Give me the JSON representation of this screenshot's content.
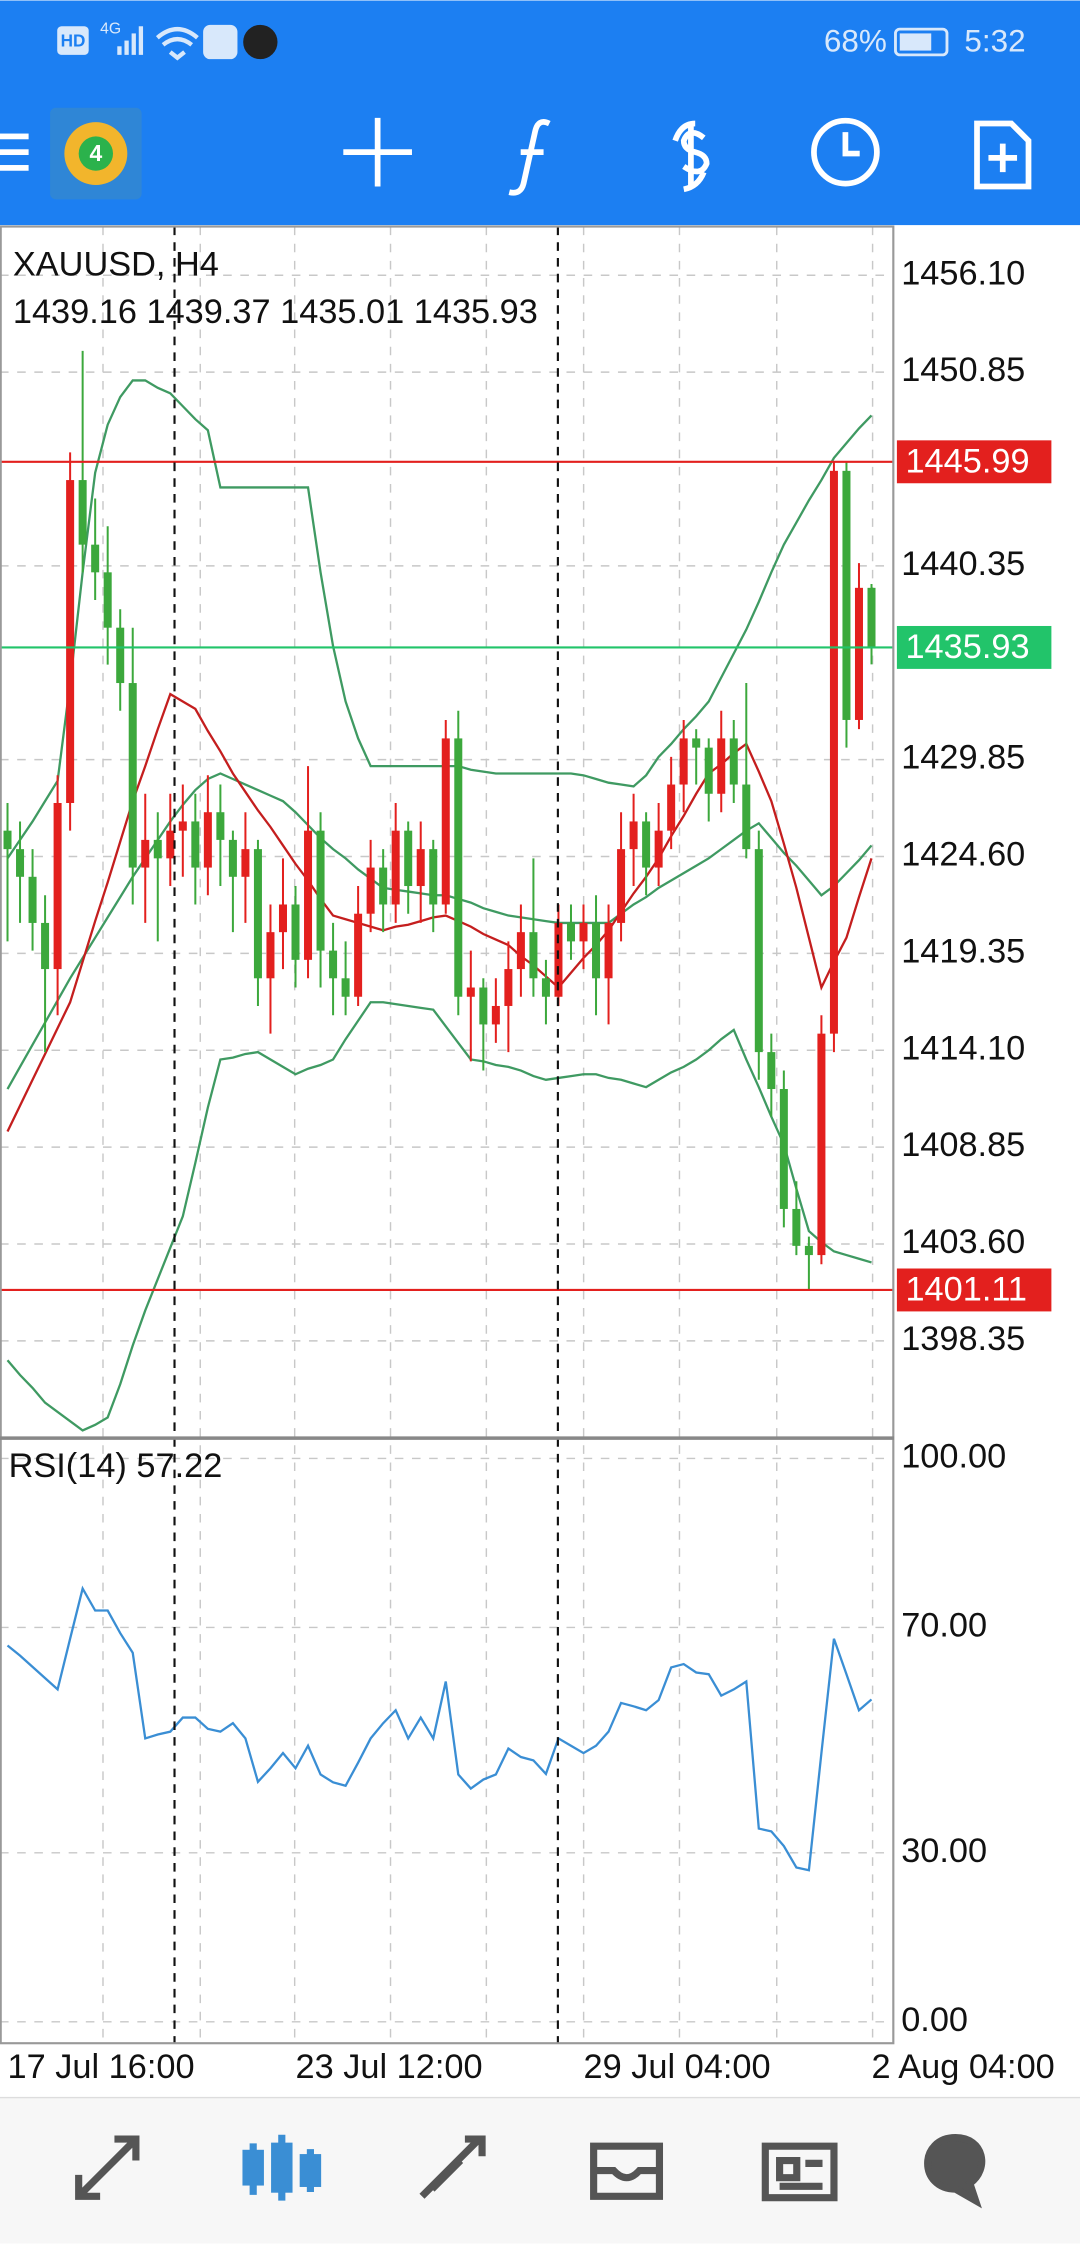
{
  "status_bar": {
    "left": [
      "HD",
      "4G"
    ],
    "battery": "68%",
    "time": "5:32"
  },
  "chart_data": [
    {
      "type": "candlestick",
      "title": "XAUUSD, H4",
      "up_color": "#e3201e",
      "down_color": "#3ca83c",
      "grid": true,
      "xlim": [
        -0.6,
        70.8
      ],
      "xticks": [
        {
          "value": 0,
          "label": "17 Jul 16:00"
        },
        {
          "value": 23,
          "label": "23 Jul 12:00"
        },
        {
          "value": 46,
          "label": "29 Jul 04:00"
        },
        {
          "value": 69,
          "label": "2 Aug 04:00"
        }
      ],
      "ylim": [
        1393.08,
        1458.74
      ],
      "yticks": [
        {
          "value": 1456.1,
          "label": "1456.10"
        },
        {
          "value": 1450.85,
          "label": "1450.85"
        },
        {
          "value": 1440.35,
          "label": "1440.35"
        },
        {
          "value": 1429.85,
          "label": "1429.85"
        },
        {
          "value": 1424.6,
          "label": "1424.60"
        },
        {
          "value": 1419.35,
          "label": "1419.35"
        },
        {
          "value": 1414.1,
          "label": "1414.10"
        },
        {
          "value": 1408.85,
          "label": "1408.85"
        },
        {
          "value": 1403.6,
          "label": "1403.60"
        },
        {
          "value": 1398.35,
          "label": "1398.35"
        }
      ],
      "ohlc": [
        [
          1426.0,
          1427.5,
          1420.0,
          1425.0
        ],
        [
          1425.0,
          1426.5,
          1421.0,
          1423.5
        ],
        [
          1423.5,
          1425.0,
          1419.5,
          1421.0
        ],
        [
          1421.0,
          1422.5,
          1414.0,
          1418.5
        ],
        [
          1418.5,
          1429.0,
          1416.0,
          1427.5
        ],
        [
          1427.5,
          1446.5,
          1426.0,
          1445.0
        ],
        [
          1445.0,
          1452.0,
          1440.0,
          1441.5
        ],
        [
          1441.5,
          1444.0,
          1438.5,
          1440.0
        ],
        [
          1440.0,
          1442.5,
          1435.0,
          1437.0
        ],
        [
          1437.0,
          1438.0,
          1432.5,
          1434.0
        ],
        [
          1434.0,
          1437.0,
          1422.0,
          1424.0
        ],
        [
          1424.0,
          1428.0,
          1421.0,
          1425.5
        ],
        [
          1425.5,
          1427.0,
          1420.0,
          1424.5
        ],
        [
          1424.5,
          1428.0,
          1423.0,
          1426.0
        ],
        [
          1426.0,
          1428.5,
          1423.5,
          1426.5
        ],
        [
          1426.5,
          1428.0,
          1422.0,
          1424.0
        ],
        [
          1424.0,
          1429.0,
          1422.5,
          1427.0
        ],
        [
          1427.0,
          1428.5,
          1423.0,
          1425.5
        ],
        [
          1425.5,
          1426.0,
          1420.5,
          1423.5
        ],
        [
          1423.5,
          1427.0,
          1421.0,
          1425.0
        ],
        [
          1425.0,
          1425.5,
          1416.5,
          1418.0
        ],
        [
          1418.0,
          1422.0,
          1415.0,
          1420.5
        ],
        [
          1420.5,
          1424.5,
          1418.5,
          1422.0
        ],
        [
          1422.0,
          1423.0,
          1417.5,
          1419.0
        ],
        [
          1419.0,
          1429.5,
          1418.0,
          1426.0
        ],
        [
          1426.0,
          1427.0,
          1417.5,
          1419.5
        ],
        [
          1419.5,
          1421.0,
          1416.0,
          1418.0
        ],
        [
          1418.0,
          1420.0,
          1416.0,
          1417.0
        ],
        [
          1417.0,
          1423.0,
          1416.5,
          1421.5
        ],
        [
          1421.5,
          1425.5,
          1420.5,
          1424.0
        ],
        [
          1424.0,
          1425.0,
          1420.5,
          1422.0
        ],
        [
          1422.0,
          1427.5,
          1421.0,
          1426.0
        ],
        [
          1426.0,
          1426.5,
          1421.5,
          1423.0
        ],
        [
          1423.0,
          1426.5,
          1421.0,
          1425.0
        ],
        [
          1425.0,
          1425.5,
          1420.5,
          1422.0
        ],
        [
          1422.0,
          1432.0,
          1421.5,
          1431.0
        ],
        [
          1431.0,
          1432.5,
          1416.0,
          1417.0
        ],
        [
          1417.0,
          1419.5,
          1413.5,
          1417.5
        ],
        [
          1417.5,
          1418.0,
          1413.0,
          1415.5
        ],
        [
          1415.5,
          1418.0,
          1414.5,
          1416.5
        ],
        [
          1416.5,
          1420.0,
          1414.0,
          1418.5
        ],
        [
          1418.5,
          1422.0,
          1417.0,
          1420.5
        ],
        [
          1420.5,
          1424.5,
          1417.0,
          1418.0
        ],
        [
          1418.0,
          1419.0,
          1415.5,
          1417.0
        ],
        [
          1417.0,
          1422.0,
          1416.5,
          1421.0
        ],
        [
          1421.0,
          1422.0,
          1419.0,
          1420.0
        ],
        [
          1420.0,
          1422.0,
          1418.5,
          1421.0
        ],
        [
          1421.0,
          1422.5,
          1416.0,
          1418.0
        ],
        [
          1418.0,
          1422.0,
          1415.5,
          1421.0
        ],
        [
          1421.0,
          1427.0,
          1420.0,
          1425.0
        ],
        [
          1425.0,
          1428.0,
          1423.0,
          1426.5
        ],
        [
          1426.5,
          1427.0,
          1422.5,
          1424.0
        ],
        [
          1424.0,
          1427.5,
          1423.0,
          1426.0
        ],
        [
          1426.0,
          1430.0,
          1425.0,
          1428.5
        ],
        [
          1428.5,
          1432.0,
          1427.0,
          1431.0
        ],
        [
          1431.0,
          1431.5,
          1428.5,
          1430.5
        ],
        [
          1430.5,
          1431.0,
          1426.5,
          1428.0
        ],
        [
          1428.0,
          1432.5,
          1427.0,
          1431.0
        ],
        [
          1431.0,
          1432.0,
          1427.5,
          1428.5
        ],
        [
          1428.5,
          1434.0,
          1424.5,
          1425.0
        ],
        [
          1425.0,
          1426.0,
          1412.5,
          1414.0
        ],
        [
          1414.0,
          1415.0,
          1410.5,
          1412.0
        ],
        [
          1412.0,
          1413.0,
          1404.5,
          1405.5
        ],
        [
          1405.5,
          1407.0,
          1403.0,
          1403.5
        ],
        [
          1403.5,
          1404.0,
          1401.11,
          1403.0
        ],
        [
          1403.0,
          1416.0,
          1402.5,
          1415.0
        ],
        [
          1415.0,
          1445.99,
          1414.0,
          1445.5
        ],
        [
          1445.5,
          1445.99,
          1430.5,
          1432.0
        ],
        [
          1432.0,
          1440.5,
          1431.5,
          1439.16
        ],
        [
          1439.16,
          1439.37,
          1435.01,
          1435.93
        ]
      ],
      "overlays": [
        {
          "color": "#3f9a62",
          "values": [
            1424.5,
            1425.5,
            1426.5,
            1427.6,
            1428.7,
            1434,
            1440,
            1445.4,
            1448,
            1449.5,
            1450.4,
            1450.4,
            1450,
            1449.7,
            1449,
            1448.3,
            1447.7,
            1444.6,
            1444.6,
            1444.6,
            1444.6,
            1444.6,
            1444.6,
            1444.6,
            1444.6,
            1440,
            1436,
            1433,
            1431,
            1429.5,
            1429.5,
            1429.5,
            1429.5,
            1429.5,
            1429.5,
            1429.5,
            1429.5,
            1429.3,
            1429.2,
            1429.1,
            1429.1,
            1429.1,
            1429.1,
            1429.1,
            1429.1,
            1429.1,
            1429,
            1428.8,
            1428.6,
            1428.5,
            1428.4,
            1429,
            1430,
            1430.7,
            1431.5,
            1432.2,
            1433,
            1434.3,
            1435.6,
            1436.9,
            1438.4,
            1440,
            1441.5,
            1442.7,
            1443.9,
            1445,
            1446.2,
            1447,
            1447.8,
            1448.5
          ]
        },
        {
          "color": "#3f9a62",
          "values": [
            1412,
            1413.2,
            1414.4,
            1415.6,
            1416.8,
            1418,
            1419.1,
            1420.2,
            1421.3,
            1422.4,
            1423.5,
            1424.5,
            1425.5,
            1426.5,
            1427.4,
            1428.2,
            1428.8,
            1429.1,
            1428.8,
            1428.5,
            1428.2,
            1427.9,
            1427.6,
            1427,
            1426.3,
            1425.6,
            1425,
            1424.5,
            1423.9,
            1423.4,
            1422.9,
            1422.8,
            1422.7,
            1422.6,
            1422.5,
            1422.5,
            1422.3,
            1422.1,
            1421.8,
            1421.6,
            1421.4,
            1421.3,
            1421.2,
            1421.1,
            1421,
            1421,
            1421,
            1421,
            1421,
            1421.5,
            1422,
            1422.4,
            1422.9,
            1423.3,
            1423.7,
            1424.1,
            1424.5,
            1425,
            1425.5,
            1426,
            1426.4,
            1425.6,
            1424.8,
            1424.1,
            1423.3,
            1422.5,
            1423,
            1423.7,
            1424.4,
            1425.2
          ]
        },
        {
          "color": "#3f9a62",
          "values": [
            1397.3,
            1396.5,
            1395.8,
            1395,
            1394.5,
            1394,
            1393.5,
            1393.8,
            1394.2,
            1396,
            1398.1,
            1400,
            1401.7,
            1403.4,
            1405.1,
            1408,
            1411,
            1413.6,
            1413.7,
            1413.9,
            1414,
            1413.6,
            1413.2,
            1412.8,
            1413.1,
            1413.3,
            1413.6,
            1414.7,
            1415.7,
            1416.7,
            1416.7,
            1416.6,
            1416.5,
            1416.4,
            1416.3,
            1415.4,
            1414.5,
            1413.6,
            1413.5,
            1413.3,
            1413.2,
            1413,
            1412.7,
            1412.5,
            1412.6,
            1412.7,
            1412.8,
            1412.8,
            1412.6,
            1412.5,
            1412.3,
            1412.1,
            1412.5,
            1412.9,
            1413.2,
            1413.6,
            1414.1,
            1414.7,
            1415.2,
            1413.6,
            1412.1,
            1410.5,
            1409,
            1406.6,
            1404.3,
            1403.7,
            1403.2,
            1403,
            1402.8,
            1402.6
          ]
        },
        {
          "color": "#c41e1e",
          "values": [
            1409.7,
            1411.1,
            1412.5,
            1413.9,
            1415.3,
            1416.7,
            1418.9,
            1421.1,
            1423.2,
            1425.4,
            1427.6,
            1429.5,
            1431.5,
            1433.4,
            1433,
            1432.6,
            1431.4,
            1430.3,
            1429.1,
            1428.1,
            1427.1,
            1426.2,
            1425.2,
            1424.2,
            1423.3,
            1422.3,
            1421.4,
            1421.2,
            1421,
            1420.8,
            1420.6,
            1420.8,
            1420.9,
            1421.1,
            1421.3,
            1421.4,
            1421.1,
            1420.8,
            1420.4,
            1420.1,
            1419.8,
            1419.2,
            1418.7,
            1418.1,
            1417.5,
            1418.3,
            1419.1,
            1419.8,
            1420.6,
            1421.6,
            1422.6,
            1423.5,
            1424.5,
            1425.7,
            1426.8,
            1428,
            1429.1,
            1429.6,
            1430.2,
            1430.7,
            1429.2,
            1427.6,
            1425.3,
            1422.9,
            1420.2,
            1417.5,
            1418.9,
            1420.2,
            1422.4,
            1424.5
          ]
        }
      ],
      "hlines": [
        {
          "value": 1445.99,
          "color": "#e3201e"
        },
        {
          "value": 1435.93,
          "color": "#22c46a"
        },
        {
          "value": 1401.11,
          "color": "#e3201e"
        }
      ]
    },
    {
      "type": "line",
      "title": "RSI(14)",
      "color": "#3a8ed4",
      "grid": true,
      "ylim": [
        -3.8,
        103.6
      ],
      "yticks": [
        {
          "value": 100,
          "label": "100.00"
        },
        {
          "value": 70,
          "label": "70.00"
        },
        {
          "value": 30,
          "label": "30.00"
        },
        {
          "value": 0,
          "label": "0.00"
        }
      ],
      "values": [
        66.8,
        65,
        63,
        61,
        59,
        68,
        76.9,
        73,
        73,
        69,
        65.5,
        50.3,
        51,
        51.5,
        54,
        54,
        52,
        51.5,
        53,
        50.3,
        42.6,
        45,
        47.7,
        45,
        49,
        43.9,
        42.5,
        41.9,
        46,
        50.3,
        53,
        55.3,
        50.3,
        54,
        50.3,
        60.4,
        43.9,
        41.4,
        43,
        43.9,
        48.5,
        47,
        46.4,
        44,
        50.3,
        49,
        47.7,
        49,
        51.5,
        56.6,
        56,
        55.3,
        57.1,
        62.9,
        63.5,
        62,
        61.7,
        57.9,
        59,
        60.4,
        34.3,
        33.8,
        31.2,
        27.4,
        26.9,
        47.7,
        68,
        61.7,
        55.3,
        57.22
      ]
    }
  ]
}
